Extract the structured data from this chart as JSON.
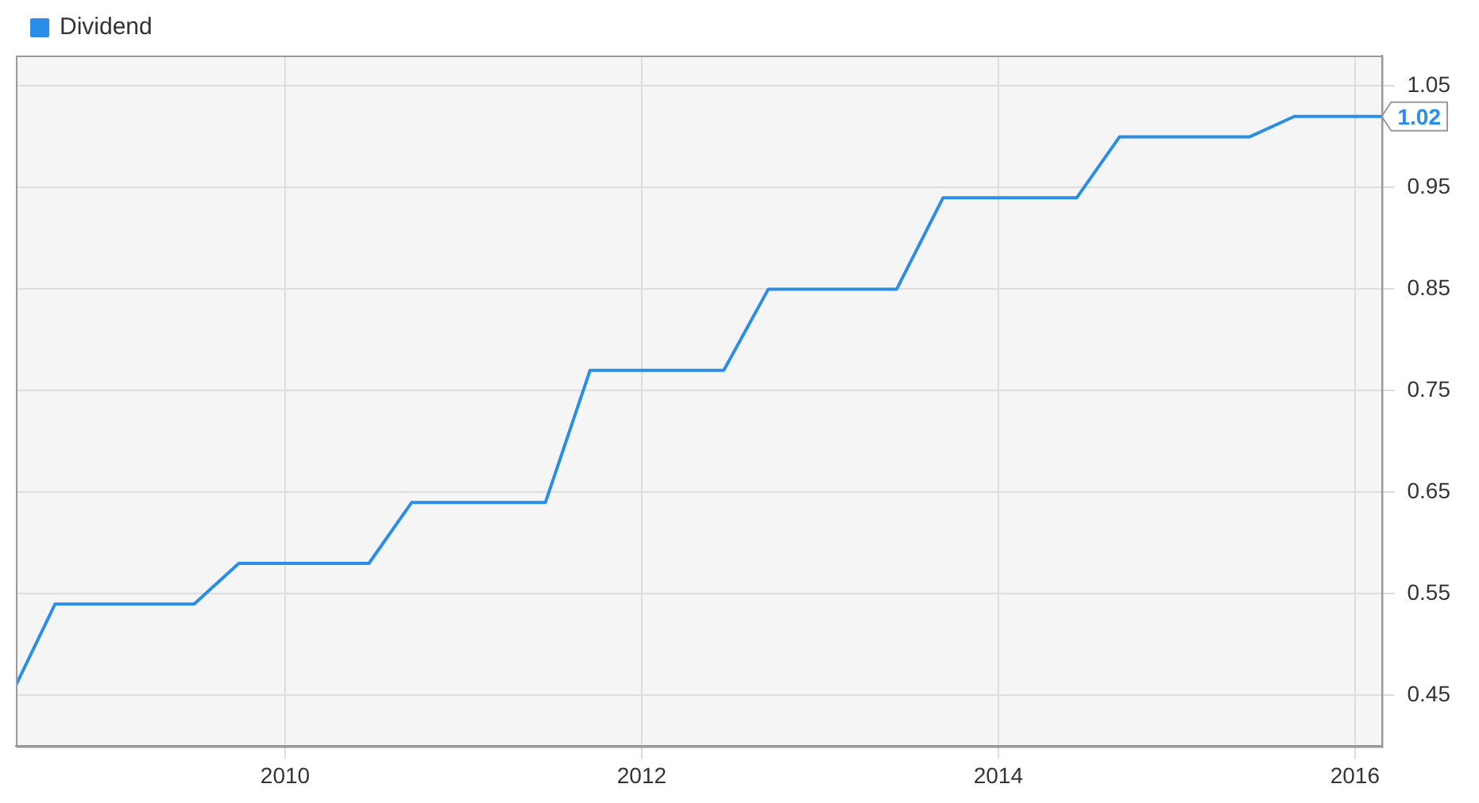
{
  "chart_data": {
    "type": "line",
    "legend": "top left",
    "grid": true,
    "marker": "none",
    "line_style": "solid",
    "xlim": [
      2008.49,
      2016.15
    ],
    "ylim": [
      0.4,
      1.08
    ],
    "xticks": [
      2010,
      2012,
      2014,
      2016
    ],
    "yticks": [
      0.45,
      0.55,
      0.65,
      0.75,
      0.85,
      0.95,
      1.05
    ],
    "series": [
      {
        "name": "Dividend",
        "color": "#2a8de6",
        "x": [
          2008.49,
          2008.71,
          2009.49,
          2009.74,
          2010.47,
          2010.71,
          2011.46,
          2011.71,
          2012.46,
          2012.71,
          2013.43,
          2013.69,
          2014.44,
          2014.68,
          2015.41,
          2015.66,
          2016.15
        ],
        "values": [
          0.46,
          0.54,
          0.54,
          0.58,
          0.58,
          0.64,
          0.64,
          0.77,
          0.77,
          0.85,
          0.85,
          0.94,
          0.94,
          1.0,
          1.0,
          1.02,
          1.02
        ]
      }
    ],
    "annotations": [
      {
        "text": "1.02",
        "x": 2016.15,
        "y": 1.02
      }
    ]
  }
}
